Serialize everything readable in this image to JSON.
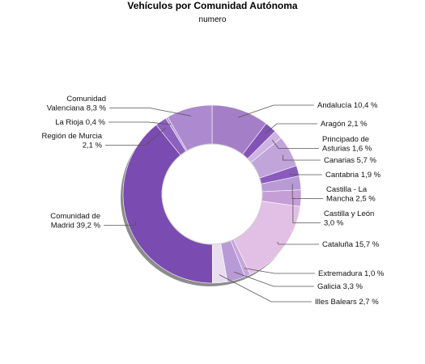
{
  "chart_data": {
    "type": "pie",
    "title": "Vehículos por Comunidad Autónoma",
    "subtitle": "numero",
    "slices": [
      {
        "label": [
          "Andalucía 10,4 %"
        ],
        "value": 10.4,
        "color": "#a57ec8"
      },
      {
        "label": [
          "Aragón 2,1 %"
        ],
        "value": 2.1,
        "color": "#8253b4"
      },
      {
        "label": [
          "Principado de",
          "Asturias 1,6 %"
        ],
        "value": 1.6,
        "color": "#cdb4e2"
      },
      {
        "label": [
          "Canarias 5,7 %"
        ],
        "value": 5.7,
        "color": "#c0a4da"
      },
      {
        "label": [
          "Cantabria 1,9 %"
        ],
        "value": 1.9,
        "color": "#8a5bbd"
      },
      {
        "label": [
          "Castilla - La",
          "Mancha 2,5 %"
        ],
        "value": 2.5,
        "color": "#b89ad6"
      },
      {
        "label": [
          "Castilla y León",
          "3,0 %"
        ],
        "value": 3.0,
        "color": "#c59ed6"
      },
      {
        "label": [
          "Cataluña 15,7 %"
        ],
        "value": 15.7,
        "color": "#e2bfe4"
      },
      {
        "label": [
          "Extremadura 1,0 %"
        ],
        "value": 1.0,
        "color": "#c5a6dc"
      },
      {
        "label": [
          "Galicia 3,3 %"
        ],
        "value": 3.3,
        "color": "#b79ad6"
      },
      {
        "label": [
          "Illes Balears 2,7 %"
        ],
        "value": 2.7,
        "color": "#e9def0"
      },
      {
        "label": [
          "Comunidad de",
          "Madrid 39,2 %"
        ],
        "value": 39.2,
        "color": "#7a4bb0"
      },
      {
        "label": [
          "Región de Murcia",
          "2,1 %"
        ],
        "value": 2.1,
        "color": "#8d5fbe"
      },
      {
        "label": [
          "La Rioja 0,4 %"
        ],
        "value": 0.4,
        "color": "#b593d4"
      },
      {
        "label": [
          "Comunidad",
          "Valenciana 8,3 %"
        ],
        "value": 8.3,
        "color": "#ad8ad0"
      }
    ]
  }
}
